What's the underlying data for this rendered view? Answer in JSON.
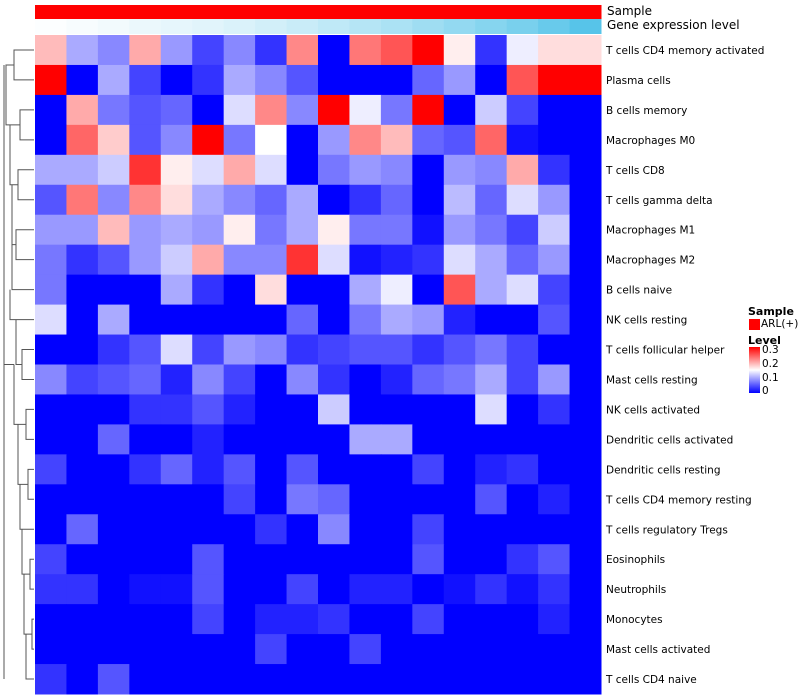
{
  "annotation_labels": {
    "sample": "Sample",
    "expression": "Gene expression level"
  },
  "legend": {
    "sample_title": "Sample",
    "sample_entry": "ARL(+)",
    "sample_color": "#ff0000",
    "level_title": "Level",
    "level_ticks": [
      "0.3",
      "0.2",
      "0.1",
      "0"
    ],
    "colors": {
      "low": "#0000ff",
      "mid": "#ffffff",
      "high": "#ff0000"
    }
  },
  "chart_data": {
    "type": "heatmap",
    "value_range": [
      0,
      0.3
    ],
    "midpoint": 0.15,
    "columns": 18,
    "sample_annotation": "ARL(+)",
    "expression_annotation": [
      0.02,
      0.05,
      0.08,
      0.12,
      0.15,
      0.18,
      0.22,
      0.27,
      0.32,
      0.38,
      0.44,
      0.5,
      0.57,
      0.64,
      0.72,
      0.8,
      0.9,
      1.0
    ],
    "rows": [
      "T cells CD4 memory activated",
      "Plasma cells",
      "B cells memory",
      "Macrophages M0",
      "T cells CD8",
      "T cells gamma delta",
      "Macrophages M1",
      "Macrophages M2",
      "B cells naive",
      "NK cells resting",
      "T cells follicular helper",
      "Mast cells resting",
      "NK cells activated",
      "Dendritic cells activated",
      "Dendritic cells resting",
      "T cells CD4 memory resting",
      "T cells regulatory  Tregs",
      "Eosinophils",
      "Neutrophils",
      "Monocytes",
      "Mast cells activated",
      "T cells CD4 naive"
    ],
    "values": [
      [
        0.19,
        0.1,
        0.08,
        0.2,
        0.09,
        0.04,
        0.08,
        0.03,
        0.22,
        0.0,
        0.23,
        0.25,
        0.3,
        0.16,
        0.03,
        0.14,
        0.17,
        0.17
      ],
      [
        0.3,
        0.0,
        0.1,
        0.04,
        0.0,
        0.03,
        0.1,
        0.08,
        0.05,
        0.0,
        0.0,
        0.0,
        0.06,
        0.09,
        0.0,
        0.25,
        0.3,
        0.3
      ],
      [
        0.0,
        0.2,
        0.07,
        0.05,
        0.06,
        0.0,
        0.13,
        0.22,
        0.08,
        0.3,
        0.14,
        0.07,
        0.3,
        0.0,
        0.12,
        0.04,
        0.0,
        0.0
      ],
      [
        0.0,
        0.24,
        0.18,
        0.05,
        0.08,
        0.3,
        0.07,
        0.15,
        0.0,
        0.09,
        0.22,
        0.19,
        0.06,
        0.05,
        0.24,
        0.01,
        0.0,
        0.0
      ],
      [
        0.1,
        0.1,
        0.12,
        0.27,
        0.16,
        0.13,
        0.2,
        0.13,
        0.0,
        0.07,
        0.09,
        0.08,
        0.0,
        0.09,
        0.08,
        0.2,
        0.03,
        0.0
      ],
      [
        0.05,
        0.23,
        0.08,
        0.22,
        0.17,
        0.1,
        0.08,
        0.06,
        0.1,
        0.0,
        0.03,
        0.06,
        0.0,
        0.11,
        0.06,
        0.13,
        0.09,
        0.0
      ],
      [
        0.09,
        0.09,
        0.19,
        0.09,
        0.1,
        0.09,
        0.16,
        0.07,
        0.1,
        0.16,
        0.07,
        0.07,
        0.01,
        0.09,
        0.07,
        0.04,
        0.12,
        0.0
      ],
      [
        0.07,
        0.03,
        0.05,
        0.09,
        0.12,
        0.2,
        0.08,
        0.08,
        0.27,
        0.13,
        0.01,
        0.02,
        0.03,
        0.13,
        0.1,
        0.06,
        0.09,
        0.0
      ],
      [
        0.07,
        0.0,
        0.0,
        0.0,
        0.1,
        0.03,
        0.0,
        0.17,
        0.0,
        0.0,
        0.1,
        0.14,
        0.0,
        0.25,
        0.1,
        0.13,
        0.04,
        0.0
      ],
      [
        0.13,
        0.0,
        0.1,
        0.0,
        0.0,
        0.0,
        0.0,
        0.0,
        0.06,
        0.0,
        0.07,
        0.1,
        0.09,
        0.02,
        0.0,
        0.0,
        0.05,
        0.0
      ],
      [
        0.0,
        0.0,
        0.03,
        0.05,
        0.13,
        0.04,
        0.09,
        0.08,
        0.03,
        0.04,
        0.05,
        0.05,
        0.03,
        0.05,
        0.07,
        0.04,
        0.0,
        0.0
      ],
      [
        0.08,
        0.04,
        0.05,
        0.06,
        0.02,
        0.08,
        0.04,
        0.0,
        0.08,
        0.03,
        0.0,
        0.02,
        0.06,
        0.07,
        0.1,
        0.04,
        0.09,
        0.0
      ],
      [
        0.0,
        0.0,
        0.0,
        0.03,
        0.03,
        0.05,
        0.02,
        0.0,
        0.0,
        0.12,
        0.0,
        0.0,
        0.0,
        0.0,
        0.13,
        0.0,
        0.03,
        0.0
      ],
      [
        0.0,
        0.0,
        0.06,
        0.0,
        0.0,
        0.02,
        0.0,
        0.0,
        0.0,
        0.0,
        0.1,
        0.1,
        0.0,
        0.0,
        0.0,
        0.0,
        0.0,
        0.0
      ],
      [
        0.04,
        0.0,
        0.0,
        0.03,
        0.06,
        0.02,
        0.05,
        0.0,
        0.05,
        0.0,
        0.0,
        0.0,
        0.04,
        0.0,
        0.02,
        0.03,
        0.0,
        0.0
      ],
      [
        0.0,
        0.0,
        0.0,
        0.0,
        0.0,
        0.0,
        0.04,
        0.0,
        0.07,
        0.06,
        0.0,
        0.0,
        0.0,
        0.0,
        0.05,
        0.0,
        0.02,
        0.0
      ],
      [
        0.0,
        0.06,
        0.0,
        0.0,
        0.0,
        0.0,
        0.0,
        0.03,
        0.0,
        0.08,
        0.0,
        0.0,
        0.04,
        0.0,
        0.0,
        0.0,
        0.0,
        0.0
      ],
      [
        0.04,
        0.0,
        0.0,
        0.0,
        0.0,
        0.05,
        0.0,
        0.0,
        0.0,
        0.0,
        0.0,
        0.0,
        0.05,
        0.0,
        0.0,
        0.03,
        0.05,
        0.0
      ],
      [
        0.03,
        0.03,
        0.0,
        0.01,
        0.01,
        0.05,
        0.0,
        0.0,
        0.04,
        0.0,
        0.02,
        0.02,
        0.0,
        0.01,
        0.03,
        0.01,
        0.03,
        0.0
      ],
      [
        0.0,
        0.0,
        0.0,
        0.0,
        0.0,
        0.04,
        0.0,
        0.02,
        0.02,
        0.03,
        0.0,
        0.0,
        0.04,
        0.0,
        0.0,
        0.0,
        0.02,
        0.0
      ],
      [
        0.0,
        0.0,
        0.0,
        0.0,
        0.0,
        0.0,
        0.0,
        0.04,
        0.0,
        0.0,
        0.04,
        0.0,
        0.0,
        0.0,
        0.0,
        0.0,
        0.0,
        0.0
      ],
      [
        0.03,
        0.0,
        0.05,
        0.0,
        0.0,
        0.0,
        0.0,
        0.0,
        0.0,
        0.0,
        0.0,
        0.0,
        0.0,
        0.0,
        0.0,
        0.0,
        0.0,
        0.0
      ]
    ]
  }
}
